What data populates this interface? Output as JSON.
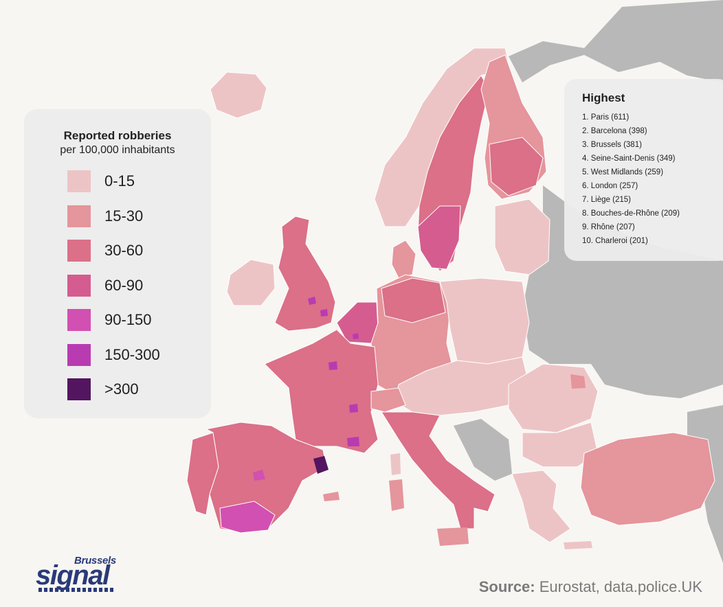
{
  "legend": {
    "title": "Reported robberies",
    "subtitle": "per 100,000 inhabitants",
    "items": [
      {
        "label": "0-15",
        "color": "#edc4c5"
      },
      {
        "label": "15-30",
        "color": "#e5959c"
      },
      {
        "label": "30-60",
        "color": "#db7088"
      },
      {
        "label": "60-90",
        "color": "#d55c8f"
      },
      {
        "label": "90-150",
        "color": "#d250b1"
      },
      {
        "label": "150-300",
        "color": "#b93bb1"
      },
      {
        "label": ">300",
        "color": "#531560"
      }
    ]
  },
  "highest": {
    "title": "Highest",
    "items": [
      "1. Paris (611)",
      "2. Barcelona (398)",
      "3. Brussels (381)",
      "4. Seine-Saint-Denis (349)",
      "5. West Midlands (259)",
      "6. London (257)",
      "7. Liège (215)",
      "8. Bouches-de-Rhône (209)",
      "9. Rhône (207)",
      "10. Charleroi (201)"
    ]
  },
  "brand": {
    "top": "Brussels",
    "main": "signal"
  },
  "source": {
    "label": "Source:",
    "text": "Eurostat, data.police.UK"
  },
  "colors": {
    "background": "#f7f6f2",
    "non_eu_land": "#b8b8b8",
    "border": "#ffffff"
  }
}
